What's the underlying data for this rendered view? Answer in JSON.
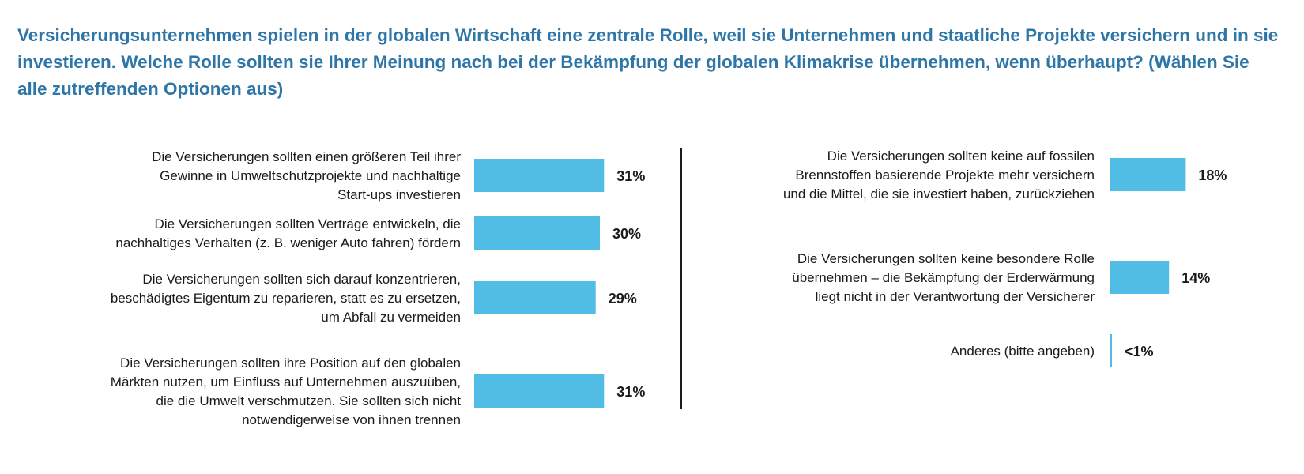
{
  "title": "Versicherungsunternehmen spielen in der globalen Wirtschaft eine zentrale Rolle, weil sie Unternehmen und staatliche Projekte versichern und in sie investieren. Welche Rolle sollten sie Ihrer Meinung nach bei der Bekämpfung der globalen Klimakrise übernehmen, wenn überhaupt? (Wählen Sie alle zutreffenden Optionen aus)",
  "colors": {
    "bar": "#52bde4",
    "title": "#2f76a8",
    "text": "#1a1a1a",
    "divider": "#1a1a1a"
  },
  "chart_data": {
    "type": "bar",
    "orientation": "horizontal",
    "unit": "%",
    "panels": [
      {
        "items": [
          {
            "label_lines": [
              "Die Versicherungen sollten einen größeren Teil ihrer",
              "Gewinne in Umweltschutzprojekte und nachhaltige",
              "Start-ups investieren"
            ],
            "value": 31,
            "value_label": "31%"
          },
          {
            "label_lines": [
              "Die Versicherungen sollten Verträge entwickeln, die",
              "nachhaltiges Verhalten (z. B. weniger Auto fahren) fördern"
            ],
            "value": 30,
            "value_label": "30%"
          },
          {
            "label_lines": [
              "Die Versicherungen sollten sich darauf konzentrieren,",
              "beschädigtes Eigentum zu reparieren, statt es zu ersetzen,",
              "um Abfall zu vermeiden"
            ],
            "value": 29,
            "value_label": "29%"
          },
          {
            "label_lines": [
              "Die Versicherungen sollten ihre Position auf den globalen",
              "Märkten nutzen, um Einfluss auf Unternehmen auszuüben,",
              "die die Umwelt verschmutzen. Sie sollten sich nicht",
              "notwendigerweise von ihnen trennen"
            ],
            "value": 31,
            "value_label": "31%"
          }
        ]
      },
      {
        "items": [
          {
            "label_lines": [
              "Die Versicherungen sollten keine auf fossilen",
              "Brennstoffen basierende Projekte mehr versichern",
              "und die Mittel, die sie investiert haben, zurückziehen"
            ],
            "value": 18,
            "value_label": "18%"
          },
          {
            "label_lines": [
              "Die Versicherungen sollten keine besondere Rolle",
              "übernehmen – die Bekämpfung der Erderwärmung",
              "liegt nicht in der Verantwortung der Versicherer"
            ],
            "value": 14,
            "value_label": "14%"
          },
          {
            "label_lines": [
              "Anderes (bitte angeben)"
            ],
            "value": 0.3,
            "value_label": "<1%"
          }
        ]
      }
    ]
  }
}
